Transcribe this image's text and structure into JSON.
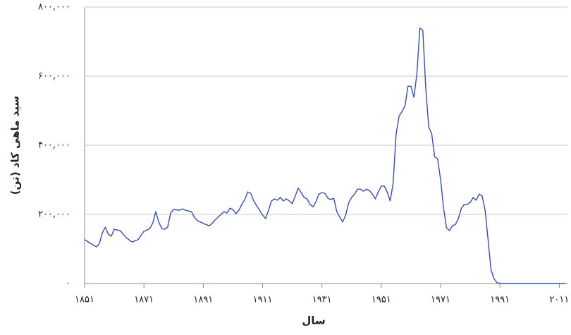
{
  "chart_data": {
    "type": "line",
    "xlabel": "سال",
    "ylabel": "سید ماهی کاد (تن)",
    "color": "#3a4ea8",
    "grid": true,
    "xlim": [
      1851,
      2014
    ],
    "ylim": [
      0,
      800000
    ],
    "xticks": [
      {
        "value": 1851,
        "label": "۱۸۵۱"
      },
      {
        "value": 1871,
        "label": "۱۸۷۱"
      },
      {
        "value": 1891,
        "label": "۱۸۹۱"
      },
      {
        "value": 1911,
        "label": "۱۹۱۱"
      },
      {
        "value": 1931,
        "label": "۱۹۳۱"
      },
      {
        "value": 1951,
        "label": "۱۹۵۱"
      },
      {
        "value": 1971,
        "label": "۱۹۷۱"
      },
      {
        "value": 1991,
        "label": "۱۹۹۱"
      },
      {
        "value": 2011,
        "label": "۲۰۱۱"
      }
    ],
    "yticks": [
      {
        "value": 0,
        "label": "۰"
      },
      {
        "value": 200000,
        "label": "۲۰۰,۰۰۰"
      },
      {
        "value": 400000,
        "label": "۴۰۰,۰۰۰"
      },
      {
        "value": 600000,
        "label": "۶۰۰,۰۰۰"
      },
      {
        "value": 800000,
        "label": "۸۰۰,۰۰۰"
      }
    ],
    "x": [
      1851,
      1853,
      1855,
      1856,
      1857,
      1858,
      1859,
      1860,
      1861,
      1863,
      1865,
      1867,
      1869,
      1871,
      1873,
      1874,
      1875,
      1876,
      1877,
      1878,
      1879,
      1880,
      1881,
      1883,
      1884,
      1885,
      1887,
      1888,
      1889,
      1891,
      1893,
      1894,
      1895,
      1896,
      1898,
      1899,
      1900,
      1901,
      1902,
      1903,
      1904,
      1905,
      1906,
      1907,
      1908,
      1909,
      1910,
      1911,
      1912,
      1913,
      1914,
      1915,
      1916,
      1917,
      1918,
      1919,
      1920,
      1921,
      1922,
      1923,
      1924,
      1925,
      1926,
      1927,
      1928,
      1929,
      1930,
      1931,
      1932,
      1933,
      1934,
      1935,
      1936,
      1937,
      1938,
      1939,
      1940,
      1941,
      1942,
      1943,
      1944,
      1945,
      1946,
      1947,
      1948,
      1949,
      1950,
      1951,
      1952,
      1953,
      1954,
      1955,
      1956,
      1957,
      1958,
      1959,
      1960,
      1961,
      1962,
      1963,
      1964,
      1965,
      1966,
      1967,
      1968,
      1969,
      1970,
      1971,
      1972,
      1973,
      1974,
      1975,
      1976,
      1977,
      1978,
      1979,
      1980,
      1981,
      1982,
      1983,
      1984,
      1985,
      1986,
      1987,
      1988,
      1989,
      1990,
      1992,
      2000,
      2013
    ],
    "values": [
      127000,
      116000,
      106000,
      116000,
      147000,
      163000,
      143000,
      137000,
      157000,
      153000,
      133000,
      120000,
      127000,
      151000,
      159000,
      176000,
      208000,
      178000,
      159000,
      157000,
      163000,
      204000,
      214000,
      212000,
      216000,
      212000,
      208000,
      192000,
      182000,
      174000,
      167000,
      174000,
      184000,
      192000,
      208000,
      204000,
      218000,
      214000,
      202000,
      212000,
      229000,
      243000,
      265000,
      261000,
      239000,
      225000,
      212000,
      198000,
      188000,
      212000,
      239000,
      245000,
      241000,
      249000,
      239000,
      245000,
      239000,
      231000,
      253000,
      276000,
      263000,
      249000,
      245000,
      229000,
      222000,
      237000,
      259000,
      263000,
      261000,
      247000,
      243000,
      247000,
      208000,
      192000,
      178000,
      198000,
      233000,
      249000,
      259000,
      273000,
      273000,
      267000,
      273000,
      269000,
      259000,
      245000,
      265000,
      282000,
      282000,
      265000,
      239000,
      290000,
      433000,
      484000,
      498000,
      514000,
      571000,
      571000,
      539000,
      606000,
      739000,
      733000,
      565000,
      453000,
      433000,
      367000,
      361000,
      300000,
      218000,
      161000,
      153000,
      167000,
      171000,
      188000,
      218000,
      229000,
      229000,
      235000,
      249000,
      241000,
      259000,
      253000,
      212000,
      127000,
      39000,
      14000,
      2000,
      0,
      0,
      0
    ]
  }
}
